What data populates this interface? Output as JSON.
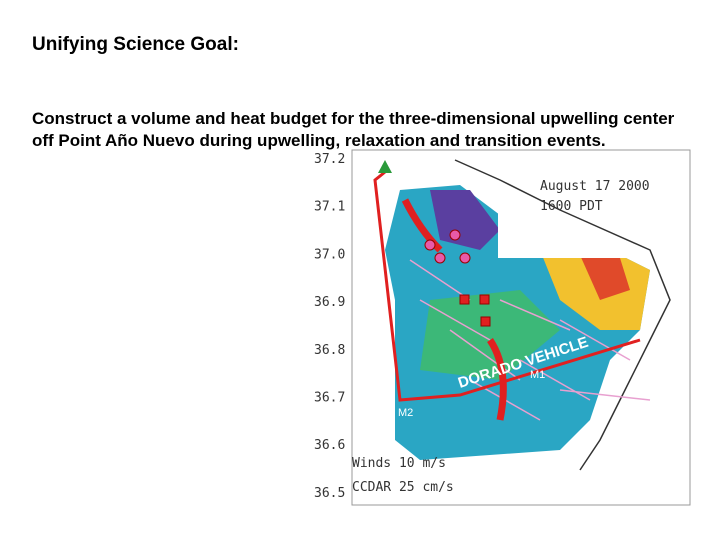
{
  "slide": {
    "title": "Unifying Science Goal:",
    "body": "Construct a volume and heat budget for the three-dimensional upwelling center off Point Año Nuevo during upwelling, relaxation and transition events.",
    "map": {
      "lat_labels": [
        "37.2",
        "37.1",
        "37.0",
        "36.9",
        "36.8",
        "36.7",
        "36.6",
        "36.5"
      ],
      "date": "August 17 2000",
      "time": "1600 PDT",
      "track_label": "DORADO VEHICLE",
      "moorings": [
        "M1",
        "M2"
      ],
      "legend": [
        "Winds 10 m/s",
        "CCDAR 25 cm/s"
      ]
    }
  }
}
